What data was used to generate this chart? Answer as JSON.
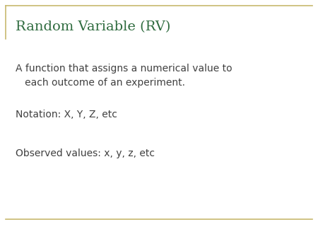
{
  "title": "Random Variable (RV)",
  "title_color": "#2E6B3E",
  "title_fontsize": 14,
  "body_lines": [
    "A function that assigns a numerical value to\n   each outcome of an experiment.",
    "Notation: X, Y, Z, etc",
    "Observed values: x, y, z, etc"
  ],
  "body_color": "#404040",
  "body_fontsize": 10,
  "background_color": "#ffffff",
  "border_color": "#c8b96e",
  "border_linewidth": 1.2
}
